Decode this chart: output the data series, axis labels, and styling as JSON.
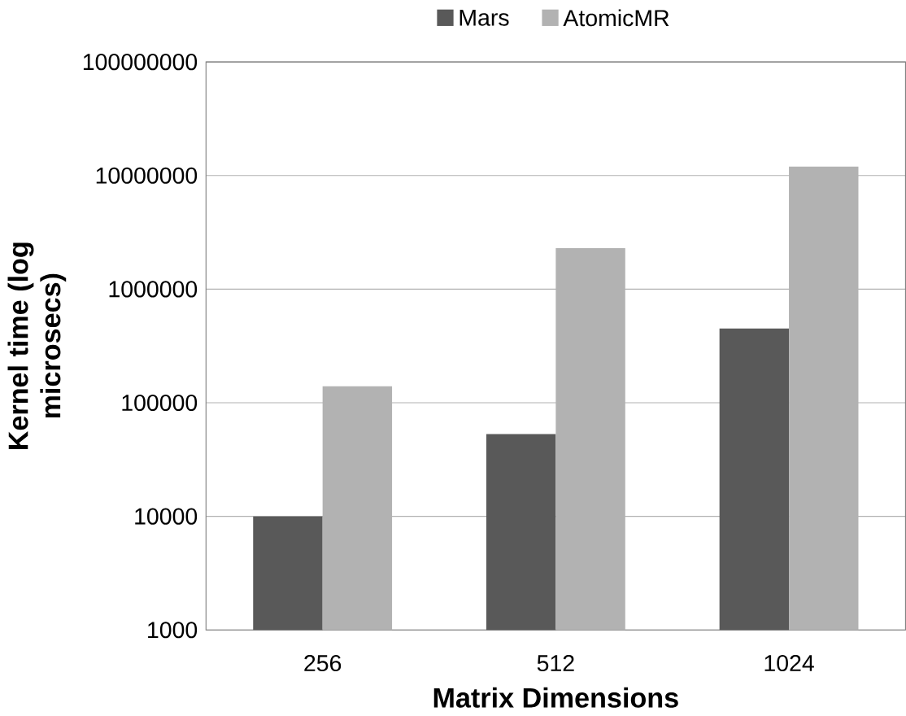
{
  "chart_data": {
    "type": "bar",
    "xlabel": "Matrix Dimensions",
    "ylabel": "Kernel time (log microsecs)",
    "categories": [
      "256",
      "512",
      "1024"
    ],
    "series": [
      {
        "name": "Mars",
        "color": "#595959",
        "values": [
          10000,
          53000,
          450000
        ]
      },
      {
        "name": "AtomicMR",
        "color": "#b2b2b2",
        "values": [
          140000,
          2300000,
          12000000
        ]
      }
    ],
    "log": "y",
    "ylim": [
      1000,
      100000000
    ],
    "yticks": [
      1000,
      10000,
      100000,
      1000000,
      10000000,
      100000000
    ],
    "grid": "y",
    "legend": "top"
  }
}
